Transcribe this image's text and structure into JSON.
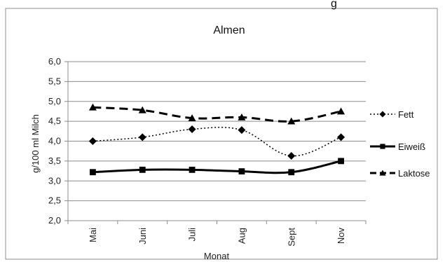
{
  "header": {
    "partial_text": "g"
  },
  "chart_data": {
    "type": "line",
    "title": "Almen",
    "xlabel": "Monat",
    "ylabel": "g/100 ml Milch",
    "categories": [
      "Mai",
      "Juni",
      "Juli",
      "Aug",
      "Sept",
      "Nov"
    ],
    "ylim": [
      2.0,
      6.0
    ],
    "yticks": [
      "2,0",
      "2,5",
      "3,0",
      "3,5",
      "4,0",
      "4,5",
      "5,0",
      "5,5",
      "6,0"
    ],
    "grid": true,
    "legend": "right",
    "series": [
      {
        "name": "Fett",
        "values": [
          4.0,
          4.1,
          4.3,
          4.28,
          3.63,
          4.1
        ],
        "style": "dotted",
        "marker": "diamond",
        "color": "#000000"
      },
      {
        "name": "Eiweiß",
        "values": [
          3.22,
          3.28,
          3.28,
          3.24,
          3.22,
          3.5
        ],
        "style": "solid",
        "marker": "square",
        "color": "#000000"
      },
      {
        "name": "Laktose",
        "values": [
          4.85,
          4.78,
          4.58,
          4.6,
          4.5,
          4.75
        ],
        "style": "dashed",
        "marker": "triangle",
        "color": "#000000"
      }
    ]
  }
}
